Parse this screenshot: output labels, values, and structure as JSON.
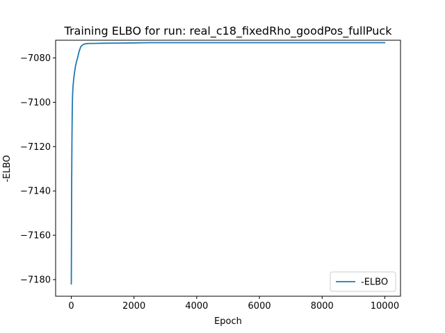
{
  "chart_data": {
    "type": "line",
    "title": "Training ELBO for run: real_c18_fixedRho_goodPos_fullPuck",
    "xlabel": "Epoch",
    "ylabel": "-ELBO",
    "xlim": [
      -500,
      10500
    ],
    "ylim": [
      -7187.5,
      -7072.0
    ],
    "xticks": [
      0,
      2000,
      4000,
      6000,
      8000,
      10000
    ],
    "yticks": [
      -7180,
      -7160,
      -7140,
      -7120,
      -7100,
      -7080
    ],
    "grid": false,
    "legend": {
      "position": "lower-right",
      "entries": [
        "-ELBO"
      ]
    },
    "series": [
      {
        "name": "-ELBO",
        "color": "#1f77b4",
        "x": [
          0,
          5,
          10,
          20,
          30,
          40,
          50,
          60,
          80,
          100,
          130,
          160,
          200,
          250,
          300,
          350,
          400,
          450,
          500,
          600,
          800,
          1000,
          1500,
          2000,
          2500,
          3000,
          4000,
          5000,
          6000,
          7000,
          8000,
          9000,
          10000
        ],
        "y": [
          -7182,
          -7165,
          -7140,
          -7118,
          -7104,
          -7097,
          -7094,
          -7092,
          -7089,
          -7087,
          -7084,
          -7082,
          -7080,
          -7077,
          -7075,
          -7074.2,
          -7073.8,
          -7073.6,
          -7073.5,
          -7073.45,
          -7073.4,
          -7073.35,
          -7073.3,
          -7073.2,
          -7073.1,
          -7073.1,
          -7073.1,
          -7073.1,
          -7073.1,
          -7073.1,
          -7073.1,
          -7073.1,
          -7073.1
        ]
      }
    ]
  }
}
